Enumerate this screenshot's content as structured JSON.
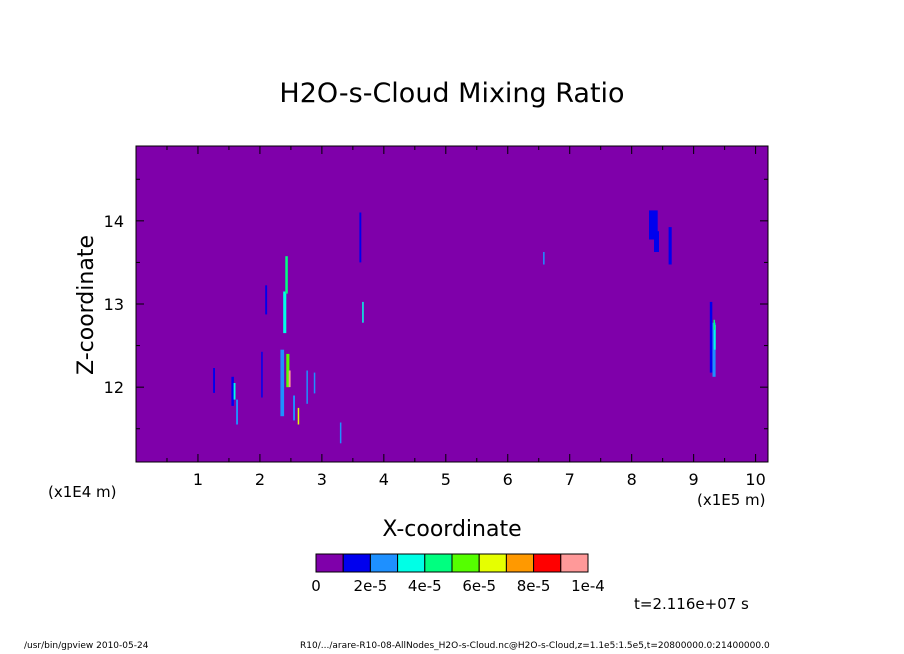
{
  "chart_data": {
    "type": "heatmap",
    "title": "H2O-s-Cloud Mixing Ratio",
    "xlabel": "X-coordinate",
    "ylabel": "Z-coordinate",
    "x_multiplier": "(x1E5 m)",
    "y_multiplier": "(x1E4 m)",
    "xlim": [
      0,
      10.2
    ],
    "ylim": [
      11.1,
      14.9
    ],
    "x_ticks": [
      1,
      2,
      3,
      4,
      5,
      6,
      7,
      8,
      9,
      10
    ],
    "y_ticks": [
      12,
      13,
      14
    ],
    "background_level": 0,
    "cells": [
      {
        "x": 1.26,
        "z": 12.08,
        "w": 0.03,
        "h": 0.3,
        "level": 1
      },
      {
        "x": 1.56,
        "z": 11.95,
        "w": 0.04,
        "h": 0.35,
        "level": 1
      },
      {
        "x": 1.59,
        "z": 11.95,
        "w": 0.03,
        "h": 0.2,
        "level": 3
      },
      {
        "x": 1.63,
        "z": 11.7,
        "w": 0.03,
        "h": 0.3,
        "level": 2
      },
      {
        "x": 2.03,
        "z": 12.15,
        "w": 0.02,
        "h": 0.55,
        "level": 1
      },
      {
        "x": 2.1,
        "z": 13.05,
        "w": 0.03,
        "h": 0.35,
        "level": 1
      },
      {
        "x": 2.36,
        "z": 12.05,
        "w": 0.06,
        "h": 0.8,
        "level": 2
      },
      {
        "x": 2.4,
        "z": 12.9,
        "w": 0.05,
        "h": 0.5,
        "level": 3
      },
      {
        "x": 2.43,
        "z": 13.35,
        "w": 0.04,
        "h": 0.45,
        "level": 4
      },
      {
        "x": 2.45,
        "z": 12.2,
        "w": 0.05,
        "h": 0.4,
        "level": 5
      },
      {
        "x": 2.48,
        "z": 12.1,
        "w": 0.03,
        "h": 0.2,
        "level": 9
      },
      {
        "x": 2.55,
        "z": 11.75,
        "w": 0.03,
        "h": 0.3,
        "level": 2
      },
      {
        "x": 2.62,
        "z": 11.65,
        "w": 0.02,
        "h": 0.2,
        "level": 6
      },
      {
        "x": 2.76,
        "z": 12.0,
        "w": 0.02,
        "h": 0.4,
        "level": 2
      },
      {
        "x": 2.88,
        "z": 12.05,
        "w": 0.02,
        "h": 0.25,
        "level": 2
      },
      {
        "x": 3.3,
        "z": 11.45,
        "w": 0.02,
        "h": 0.25,
        "level": 2
      },
      {
        "x": 3.62,
        "z": 13.8,
        "w": 0.03,
        "h": 0.6,
        "level": 1
      },
      {
        "x": 3.66,
        "z": 12.9,
        "w": 0.02,
        "h": 0.25,
        "level": 3
      },
      {
        "x": 6.58,
        "z": 13.55,
        "w": 0.02,
        "h": 0.15,
        "level": 2
      },
      {
        "x": 8.35,
        "z": 13.95,
        "w": 0.14,
        "h": 0.35,
        "level": 1
      },
      {
        "x": 8.4,
        "z": 13.75,
        "w": 0.08,
        "h": 0.25,
        "level": 1
      },
      {
        "x": 8.62,
        "z": 13.7,
        "w": 0.05,
        "h": 0.45,
        "level": 1
      },
      {
        "x": 9.28,
        "z": 12.6,
        "w": 0.04,
        "h": 0.85,
        "level": 1
      },
      {
        "x": 9.33,
        "z": 12.45,
        "w": 0.05,
        "h": 0.65,
        "level": 2
      },
      {
        "x": 9.34,
        "z": 12.6,
        "w": 0.03,
        "h": 0.3,
        "level": 3
      },
      {
        "x": 9.33,
        "z": 12.75,
        "w": 0.02,
        "h": 0.12,
        "level": 4
      }
    ],
    "colorbar": {
      "colors": [
        "#7f00aa",
        "#0000ee",
        "#1e90ff",
        "#00ffe6",
        "#00ff80",
        "#55ff00",
        "#e6ff00",
        "#ff9900",
        "#ff0000",
        "#ff9999"
      ],
      "labels": [
        "0",
        "2e-5",
        "4e-5",
        "6e-5",
        "8e-5",
        "1e-4"
      ]
    },
    "time_label": "t=2.116e+07 s"
  },
  "footer": {
    "left": "/usr/bin/gpview  2010-05-24",
    "right": "R10/.../arare-R10-08-AllNodes_H2O-s-Cloud.nc@H2O-s-Cloud,z=1.1e5:1.5e5,t=20800000.0:21400000.0"
  }
}
